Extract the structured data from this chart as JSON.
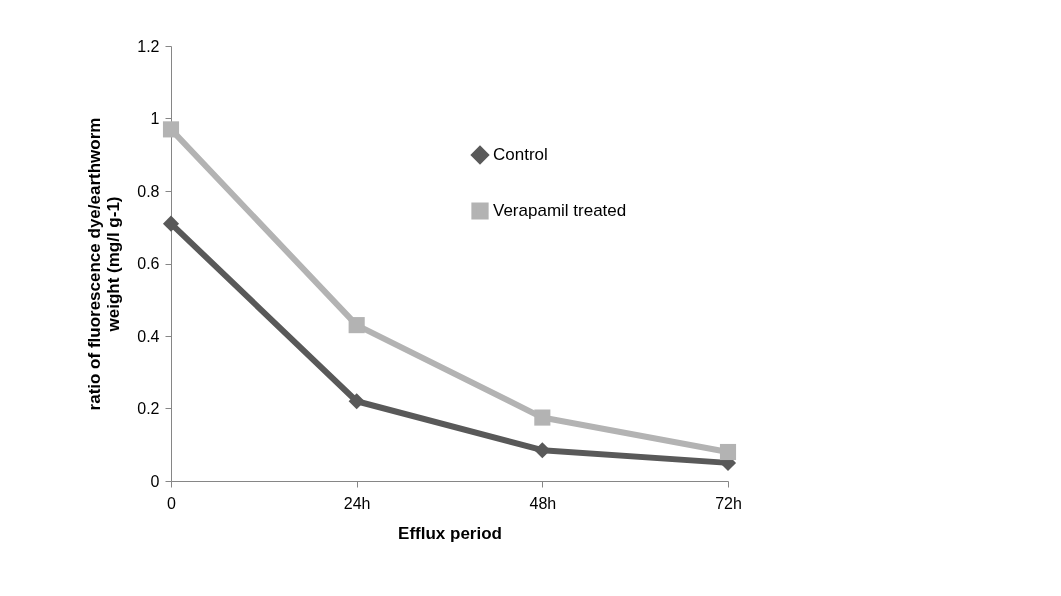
{
  "chart_data": {
    "type": "line",
    "xlabel": "Efflux period",
    "ylabel": "ratio of fluorescence dye/earthworm weight (mg/l g-1)",
    "categories": [
      "0",
      "24h",
      "48h",
      "72h"
    ],
    "series": [
      {
        "name": "Control",
        "color": "#595959",
        "marker": "diamond",
        "values": [
          0.71,
          0.22,
          0.085,
          0.05
        ]
      },
      {
        "name": "Verapamil treated",
        "color": "#b3b3b3",
        "marker": "square",
        "values": [
          0.97,
          0.43,
          0.175,
          0.08
        ]
      }
    ],
    "ylim": [
      0,
      1.2
    ],
    "yticks": [
      0,
      0.2,
      0.4,
      0.6,
      0.8,
      1,
      1.2
    ],
    "grid": false,
    "legend": "top right",
    "line_style": "solid"
  }
}
